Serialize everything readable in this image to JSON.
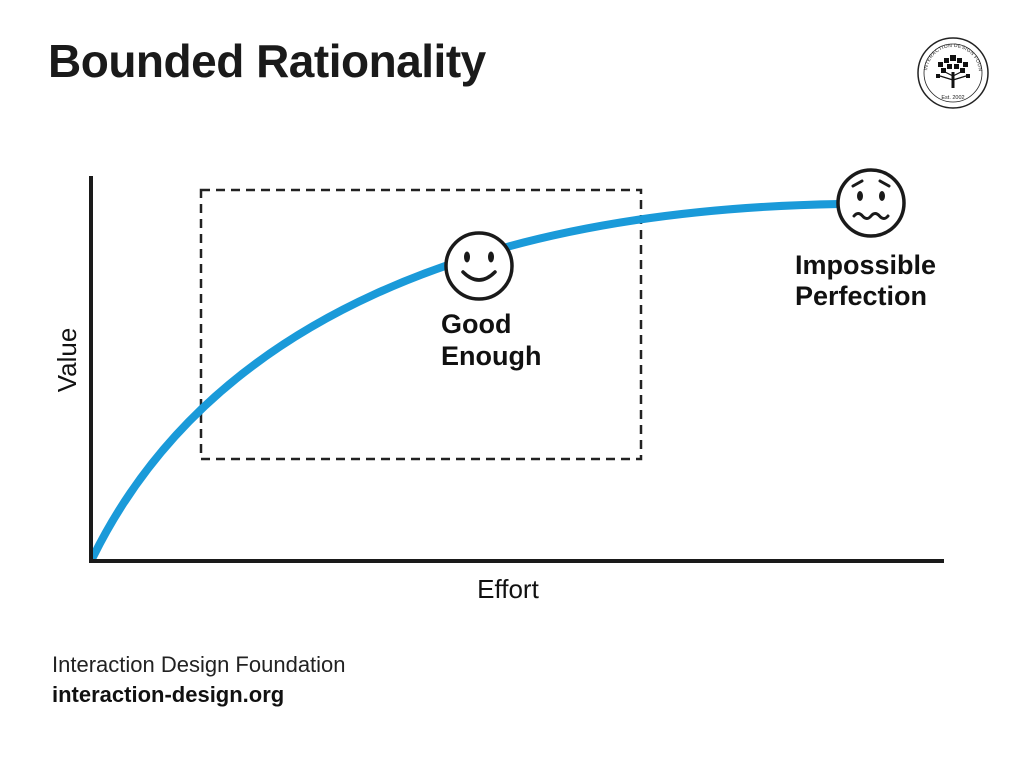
{
  "title": "Bounded Rationality",
  "logo": {
    "ring_text": "INTERACTION DESIGN FOUNDATION",
    "established": "Est. 2002"
  },
  "axes": {
    "x_label": "Effort",
    "y_label": "Value"
  },
  "annotations": {
    "good_enough_line1": "Good",
    "good_enough_line2": "Enough",
    "impossible_line1": "Impossible",
    "impossible_line2": "Perfection"
  },
  "colors": {
    "curve": "#1a9ad9",
    "axis": "#1a1a1a"
  },
  "footer": {
    "organization": "Interaction Design Foundation",
    "url": "interaction-design.org"
  }
}
